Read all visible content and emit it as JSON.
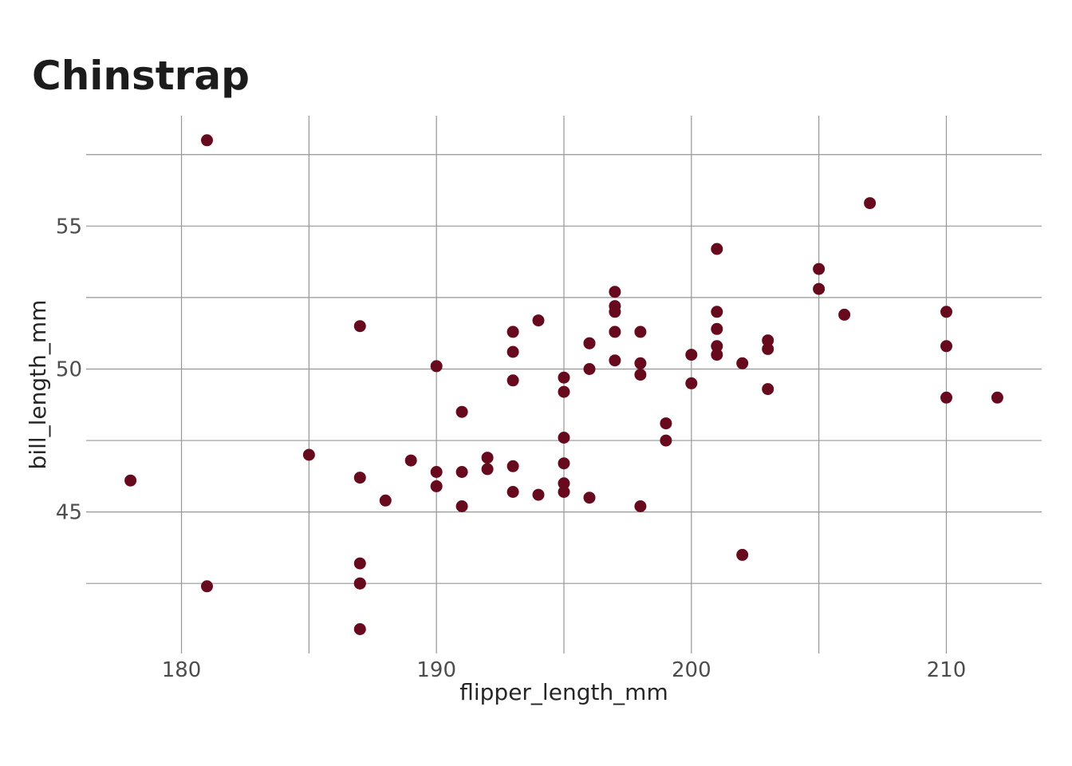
{
  "title": "Chinstrap",
  "chart_data": {
    "type": "scatter",
    "title": "Chinstrap",
    "xlabel": "flipper_length_mm",
    "ylabel": "bill_length_mm",
    "xlim": [
      176.26,
      213.74
    ],
    "ylim": [
      40.05,
      58.86
    ],
    "x_tick_labels": [
      180,
      190,
      200,
      210
    ],
    "y_tick_labels": [
      45,
      50,
      55
    ],
    "x_gridlines": [
      180,
      185,
      190,
      195,
      200,
      205,
      210
    ],
    "y_gridlines": [
      42.5,
      45,
      47.5,
      50,
      52.5,
      55,
      57.5
    ],
    "grid": true,
    "legend": "none",
    "series": [
      {
        "name": "Chinstrap",
        "x_field": "flipper_length_mm",
        "y_field": "bill_length_mm",
        "points": [
          [
            192,
            46.5
          ],
          [
            196,
            50.0
          ],
          [
            193,
            51.3
          ],
          [
            188,
            45.4
          ],
          [
            197,
            52.7
          ],
          [
            198,
            45.2
          ],
          [
            178,
            46.1
          ],
          [
            197,
            51.3
          ],
          [
            195,
            46.0
          ],
          [
            198,
            51.3
          ],
          [
            193,
            46.6
          ],
          [
            194,
            51.7
          ],
          [
            185,
            47.0
          ],
          [
            201,
            52.0
          ],
          [
            190,
            45.9
          ],
          [
            201,
            50.5
          ],
          [
            197,
            50.3
          ],
          [
            181,
            58.0
          ],
          [
            190,
            46.4
          ],
          [
            195,
            49.2
          ],
          [
            181,
            42.4
          ],
          [
            191,
            48.5
          ],
          [
            187,
            43.2
          ],
          [
            193,
            50.6
          ],
          [
            195,
            46.7
          ],
          [
            197,
            52.0
          ],
          [
            200,
            50.5
          ],
          [
            200,
            49.5
          ],
          [
            191,
            46.4
          ],
          [
            205,
            52.8
          ],
          [
            187,
            40.9
          ],
          [
            201,
            54.2
          ],
          [
            187,
            42.5
          ],
          [
            203,
            51.0
          ],
          [
            195,
            49.7
          ],
          [
            199,
            47.5
          ],
          [
            195,
            47.6
          ],
          [
            210,
            52.0
          ],
          [
            192,
            46.9
          ],
          [
            205,
            53.5
          ],
          [
            210,
            49.0
          ],
          [
            187,
            46.2
          ],
          [
            196,
            50.9
          ],
          [
            196,
            45.5
          ],
          [
            196,
            50.9
          ],
          [
            201,
            50.8
          ],
          [
            190,
            50.1
          ],
          [
            212,
            49.0
          ],
          [
            187,
            51.5
          ],
          [
            198,
            49.8
          ],
          [
            199,
            48.1
          ],
          [
            201,
            51.4
          ],
          [
            193,
            45.7
          ],
          [
            203,
            50.7
          ],
          [
            187,
            42.5
          ],
          [
            197,
            52.2
          ],
          [
            191,
            45.2
          ],
          [
            203,
            49.3
          ],
          [
            202,
            50.2
          ],
          [
            194,
            45.6
          ],
          [
            206,
            51.9
          ],
          [
            189,
            46.8
          ],
          [
            195,
            45.7
          ],
          [
            207,
            55.8
          ],
          [
            202,
            43.5
          ],
          [
            193,
            49.6
          ],
          [
            210,
            50.8
          ],
          [
            198,
            50.2
          ]
        ]
      }
    ]
  },
  "colors": {
    "point": "#670a1e",
    "grid": "#969696",
    "tick_label": "#4d4d4d",
    "axis_label": "#262626",
    "title": "#1c1c1c",
    "background": "#ffffff"
  }
}
